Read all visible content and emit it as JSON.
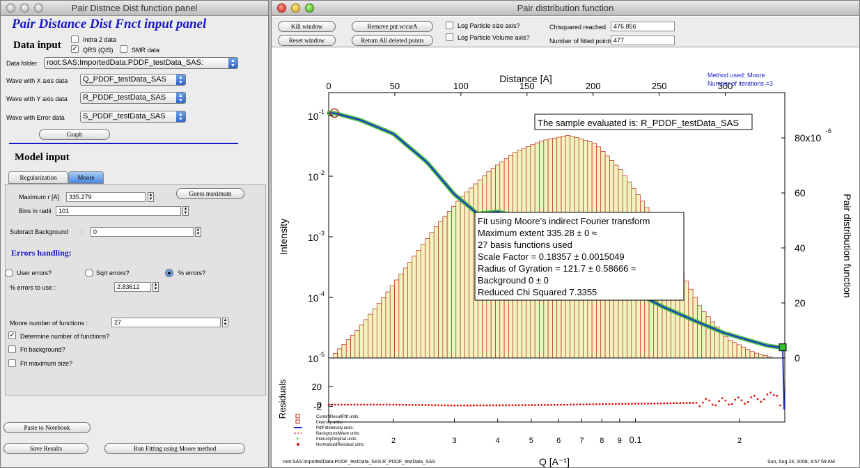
{
  "left_window": {
    "title": "Pair Distnce Dist function panel",
    "heading": "Pair Distance Dist Fnct input panel",
    "data_input_label": "Data input",
    "checkboxes": [
      {
        "label": "Indra 2 data",
        "checked": false
      },
      {
        "label": "QRS (QIS)",
        "checked": true
      },
      {
        "label": "SMR data",
        "checked": false
      }
    ],
    "data_folder_label": "Data folder:",
    "data_folder_value": "root:SAS:ImportedData:PDDF_testData_SAS:",
    "x_label": "Wave with X axis data",
    "x_value": "Q_PDDF_testData_SAS",
    "y_label": "Wave with Y axis data",
    "y_value": "R_PDDF_testData_SAS",
    "err_label": "Wave with Error data",
    "err_value": "S_PDDF_testData_SAS",
    "graph_button": "Graph",
    "model_input_label": "Model input",
    "tabs": [
      "Regularization",
      "Moore"
    ],
    "max_r_label": "Maximum r [A]",
    "max_r_value": "335.279",
    "guess_button": "Guess maximum",
    "bins_label": "Bins in radii",
    "bins_value": "101",
    "subtract_bg_label": "Subtract Background",
    "subtract_bg_colon": ":",
    "subtract_bg_value": "0",
    "errors_handling_label": "Errors handling:",
    "radios": [
      {
        "label": "User errors?",
        "selected": false
      },
      {
        "label": "Sqrt errors?",
        "selected": false
      },
      {
        "label": "% errors?",
        "selected": true
      }
    ],
    "pct_errors_label": "% errors to use :",
    "pct_errors_value": "2.83612",
    "moore_num_label": "Moore number of functions :",
    "moore_num_value": "27",
    "determine_label": "Determine number of functions?",
    "determine_checked": true,
    "fit_bg_label": "Fit background?",
    "fit_max_label": "Fit maximum size?",
    "paste_button": "Paste to Notebook",
    "save_button": "Save Results",
    "run_button": "Run Fitting using Moore method"
  },
  "right_window": {
    "title": "Pair distribution function",
    "kill_button": "Kill window",
    "reset_button": "Reset window",
    "remove_button": "Remove pnt w/csrA",
    "return_button": "Return All deleted points",
    "log_size_label": "Log Particle size axis?",
    "log_volume_label": "Log Particle Volume axis?",
    "chisq_label": "Chisquared reached",
    "chisq_value": "476.856",
    "npoints_label": "Number of fitted points",
    "npoints_value": "477"
  },
  "chart_data": {
    "type": "line",
    "top_xlabel": "Distance [A]",
    "top_ticks": [
      "0",
      "50",
      "100",
      "150",
      "200",
      "250",
      "300"
    ],
    "top_tick_values": [
      0,
      50,
      100,
      150,
      200,
      250,
      300
    ],
    "xlabel": "Q [A⁻¹]",
    "x_scale": "log",
    "xlim": [
      0.013,
      0.27
    ],
    "bottom_tick_labels": [
      "2",
      "3",
      "4",
      "5",
      "6",
      "7",
      "8",
      "9",
      "0.1",
      "2"
    ],
    "ylabel": "Intensity",
    "y_scale": "log",
    "ylim": [
      1e-05,
      0.12
    ],
    "left_ticks": [
      "10",
      "10",
      "10",
      "10",
      "10"
    ],
    "left_tick_exps": [
      "-1",
      "-2",
      "-3",
      "-4",
      "-5"
    ],
    "right_ylabel": "Pair distribution function",
    "right_ticks": [
      "80x10",
      "60",
      "40",
      "20",
      "0"
    ],
    "right_tick_exp": "-6",
    "residuals_label": "Residuals",
    "residual_ticks": [
      "20",
      "0",
      "-2"
    ],
    "method_lines": [
      "Method used: Moore",
      "Number of iterations =3"
    ],
    "sample_label": "The sample evaluated is:  R_PDDF_testData_SAS",
    "fit_lines": [
      "Fit using Moore's indirect Fourier transform",
      "Maximum extent 335.28 ± 0 ≈",
      "27 basis functions used",
      "Scale Factor = 0.18357 ± 0.0015049",
      "Radius of Gyration = 121.7 ± 0.58666 ≈",
      "Background 0 ± 0",
      "Reduced Chi Squared 7.3355"
    ],
    "legend": [
      "CurrentResultPdf   units:",
      "Intensity   units:",
      "PdfFitIntensity   units:",
      "BackgroundWave   units:",
      "IntensityOriginal   units:",
      "NormalizedResidual   units:"
    ],
    "footer_left": "root:SAS:ImportedData:PDDF_testData_SAS:R_PDDF_testData_SAS",
    "footer_right": "Sun, Aug 24, 2008,  3:57:59 AM",
    "colors": {
      "bars_fill": "#f1f3bd",
      "bars_stroke": "#b8241a",
      "fit": "#1d2bd0",
      "data": "#38b838",
      "residuals": "#e01010"
    },
    "series": [
      {
        "name": "PdfFitIntensity",
        "q": [
          0.0135,
          0.016,
          0.02,
          0.025,
          0.03,
          0.035,
          0.04,
          0.045,
          0.05,
          0.06,
          0.07,
          0.08,
          0.09,
          0.1,
          0.12,
          0.15,
          0.18,
          0.21,
          0.24,
          0.26
        ],
        "intensity": [
          0.11,
          0.085,
          0.05,
          0.017,
          0.005,
          0.0024,
          0.0026,
          0.0022,
          0.0014,
          0.00085,
          0.0005,
          0.0003,
          0.0002,
          0.00012,
          7e-05,
          4e-05,
          2.6e-05,
          2e-05,
          1.6e-05,
          1.5e-05
        ]
      },
      {
        "name": "PDF bars",
        "r": [
          0,
          20,
          40,
          60,
          80,
          100,
          120,
          140,
          160,
          180,
          200,
          220,
          240,
          260,
          280,
          300,
          320,
          335
        ],
        "p_x1e6": [
          0,
          10,
          22,
          35,
          48,
          59,
          68,
          75,
          79,
          81,
          78,
          68,
          54,
          36,
          18,
          7,
          2,
          0
        ]
      },
      {
        "name": "NormalizedResidual",
        "q": [
          0.0135,
          0.02,
          0.03,
          0.05,
          0.08,
          0.1,
          0.15,
          0.2,
          0.24,
          0.26
        ],
        "residual": [
          0,
          0,
          -1,
          -0.5,
          0.5,
          1,
          2,
          4,
          8,
          15
        ]
      }
    ]
  }
}
